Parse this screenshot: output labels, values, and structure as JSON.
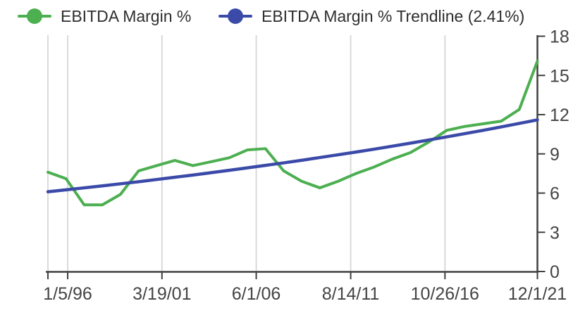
{
  "colors": {
    "green": "#4CAF50",
    "blue": "#3B4AA8",
    "grid": "#D6D6D6",
    "axis": "#404040",
    "tick_label": "#444444",
    "legend_text": "#2E2E2E",
    "background": "#FFFFFF"
  },
  "chart_data": {
    "type": "line",
    "title": "",
    "legend_position": "top-left",
    "x_axis": {
      "tick_labels": [
        "1/5/96",
        "3/19/01",
        "6/1/06",
        "8/14/11",
        "10/26/16",
        "12/1/21"
      ],
      "tick_t": [
        1.09,
        6.29,
        11.49,
        16.7,
        21.9,
        27
      ],
      "range_t": [
        0,
        27
      ],
      "gridlines": true,
      "extra_grid_t": [
        0
      ]
    },
    "y_axis": {
      "side": "right",
      "ticks": [
        0,
        3,
        6,
        9,
        12,
        15,
        18
      ],
      "lim": [
        0,
        18
      ],
      "gridlines": false
    },
    "series": [
      {
        "name": "EBITDA Margin %",
        "color": "#4CAF50",
        "line_width": 4,
        "values": [
          7.6,
          7.1,
          5.1,
          5.1,
          5.9,
          7.7,
          8.1,
          8.5,
          8.1,
          8.4,
          8.7,
          9.3,
          9.4,
          7.7,
          6.9,
          6.4,
          6.9,
          7.5,
          8.0,
          8.6,
          9.1,
          9.9,
          10.8,
          11.1,
          11.3,
          11.5,
          12.4,
          16.1
        ]
      },
      {
        "name": "EBITDA Margin % Trendline (2.41%)",
        "color": "#3B4AA8",
        "line_width": 4.5,
        "growth_rate_pct": 2.41,
        "values": [
          6.1,
          6.25,
          6.4,
          6.55,
          6.71,
          6.87,
          7.04,
          7.21,
          7.38,
          7.56,
          7.74,
          7.93,
          8.12,
          8.31,
          8.51,
          8.72,
          8.93,
          9.14,
          9.36,
          9.59,
          9.82,
          10.06,
          10.3,
          10.55,
          10.8,
          11.06,
          11.33,
          11.6
        ]
      }
    ]
  }
}
